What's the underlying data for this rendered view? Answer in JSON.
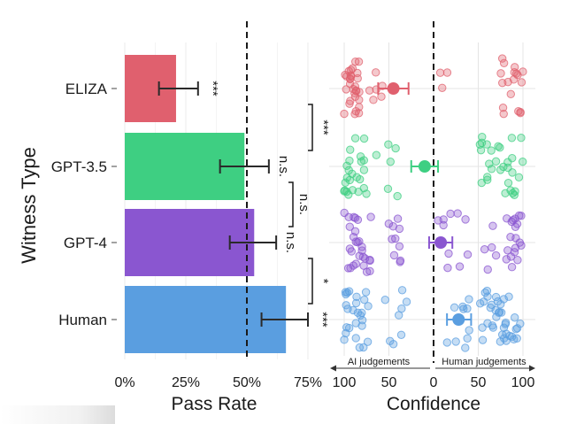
{
  "chart_data": [
    {
      "type": "bar",
      "title": "",
      "xlabel": "Pass Rate",
      "ylabel": "Witness Type",
      "categories": [
        "ELIZA",
        "GPT-3.5",
        "GPT-4",
        "Human"
      ],
      "values": [
        21,
        49,
        53,
        66
      ],
      "error_low": [
        14,
        39,
        43,
        56
      ],
      "error_high": [
        30,
        59,
        62,
        75
      ],
      "xlim": [
        0,
        75
      ],
      "xticks": [
        "0%",
        "25%",
        "50%",
        "75%"
      ],
      "reference_line": 50,
      "significance": [
        {
          "label": "***",
          "target": "ELIZA"
        },
        {
          "label": "n.s.",
          "target": "GPT-3.5"
        },
        {
          "label": "n.s.",
          "target": "GPT-4"
        },
        {
          "label": "***",
          "target": "Human"
        },
        {
          "label": "***",
          "from": "ELIZA",
          "to": "GPT-3.5"
        },
        {
          "label": "n.s.",
          "from": "GPT-3.5",
          "to": "GPT-4"
        },
        {
          "label": "*",
          "from": "GPT-4",
          "to": "Human"
        }
      ],
      "colors": {
        "ELIZA": "#e0606e",
        "GPT-3.5": "#3ecf82",
        "GPT-4": "#8a56d0",
        "Human": "#5a9ee0"
      }
    },
    {
      "type": "scatter",
      "title": "",
      "xlabel": "Confidence",
      "categories": [
        "ELIZA",
        "GPT-3.5",
        "GPT-4",
        "Human"
      ],
      "xticks": [
        "100",
        "50",
        "0",
        "50",
        "100"
      ],
      "xlim": [
        -100,
        100
      ],
      "reference_line": 0,
      "means": [
        -45,
        -10,
        8,
        28
      ],
      "ci_low": [
        -62,
        -25,
        -5,
        15
      ],
      "ci_high": [
        -28,
        5,
        21,
        42
      ],
      "annotations": {
        "left": "AI judgements",
        "right": "Human judgements"
      },
      "colors": {
        "ELIZA": "#e0606e",
        "GPT-3.5": "#3ecf82",
        "GPT-4": "#8a56d0",
        "Human": "#5a9ee0"
      }
    }
  ]
}
